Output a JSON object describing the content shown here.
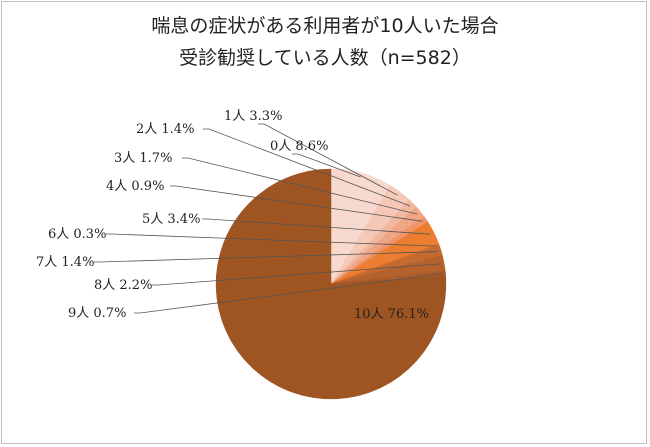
{
  "chart_data": {
    "type": "pie",
    "title_lines": [
      "喘息の症状がある利用者が10人いた場合",
      "受診勧奨している人数（n=582）"
    ],
    "unit": "人",
    "slices": [
      {
        "category": "0",
        "value": 8.6,
        "label": "0人 8.6%",
        "color": "#f8d9d0"
      },
      {
        "category": "1",
        "value": 3.3,
        "label": "1人 3.3%",
        "color": "#f5c8b8"
      },
      {
        "category": "2",
        "value": 1.4,
        "label": "2人 1.4%",
        "color": "#f2b79f"
      },
      {
        "category": "3",
        "value": 1.7,
        "label": "3人 1.7%",
        "color": "#f0a585"
      },
      {
        "category": "4",
        "value": 0.9,
        "label": "4人 0.9%",
        "color": "#ee9468"
      },
      {
        "category": "5",
        "value": 3.4,
        "label": "5人 3.4%",
        "color": "#ed7d31"
      },
      {
        "category": "6",
        "value": 0.3,
        "label": "6人 0.3%",
        "color": "#d5702d"
      },
      {
        "category": "7",
        "value": 1.4,
        "label": "7人 1.4%",
        "color": "#c46a2f"
      },
      {
        "category": "8",
        "value": 2.2,
        "label": "8人 2.2%",
        "color": "#b5612c"
      },
      {
        "category": "9",
        "value": 0.7,
        "label": "9人 0.7%",
        "color": "#a85b28"
      },
      {
        "category": "10",
        "value": 76.1,
        "label": "10人 76.1%",
        "color": "#9e5522"
      }
    ]
  }
}
